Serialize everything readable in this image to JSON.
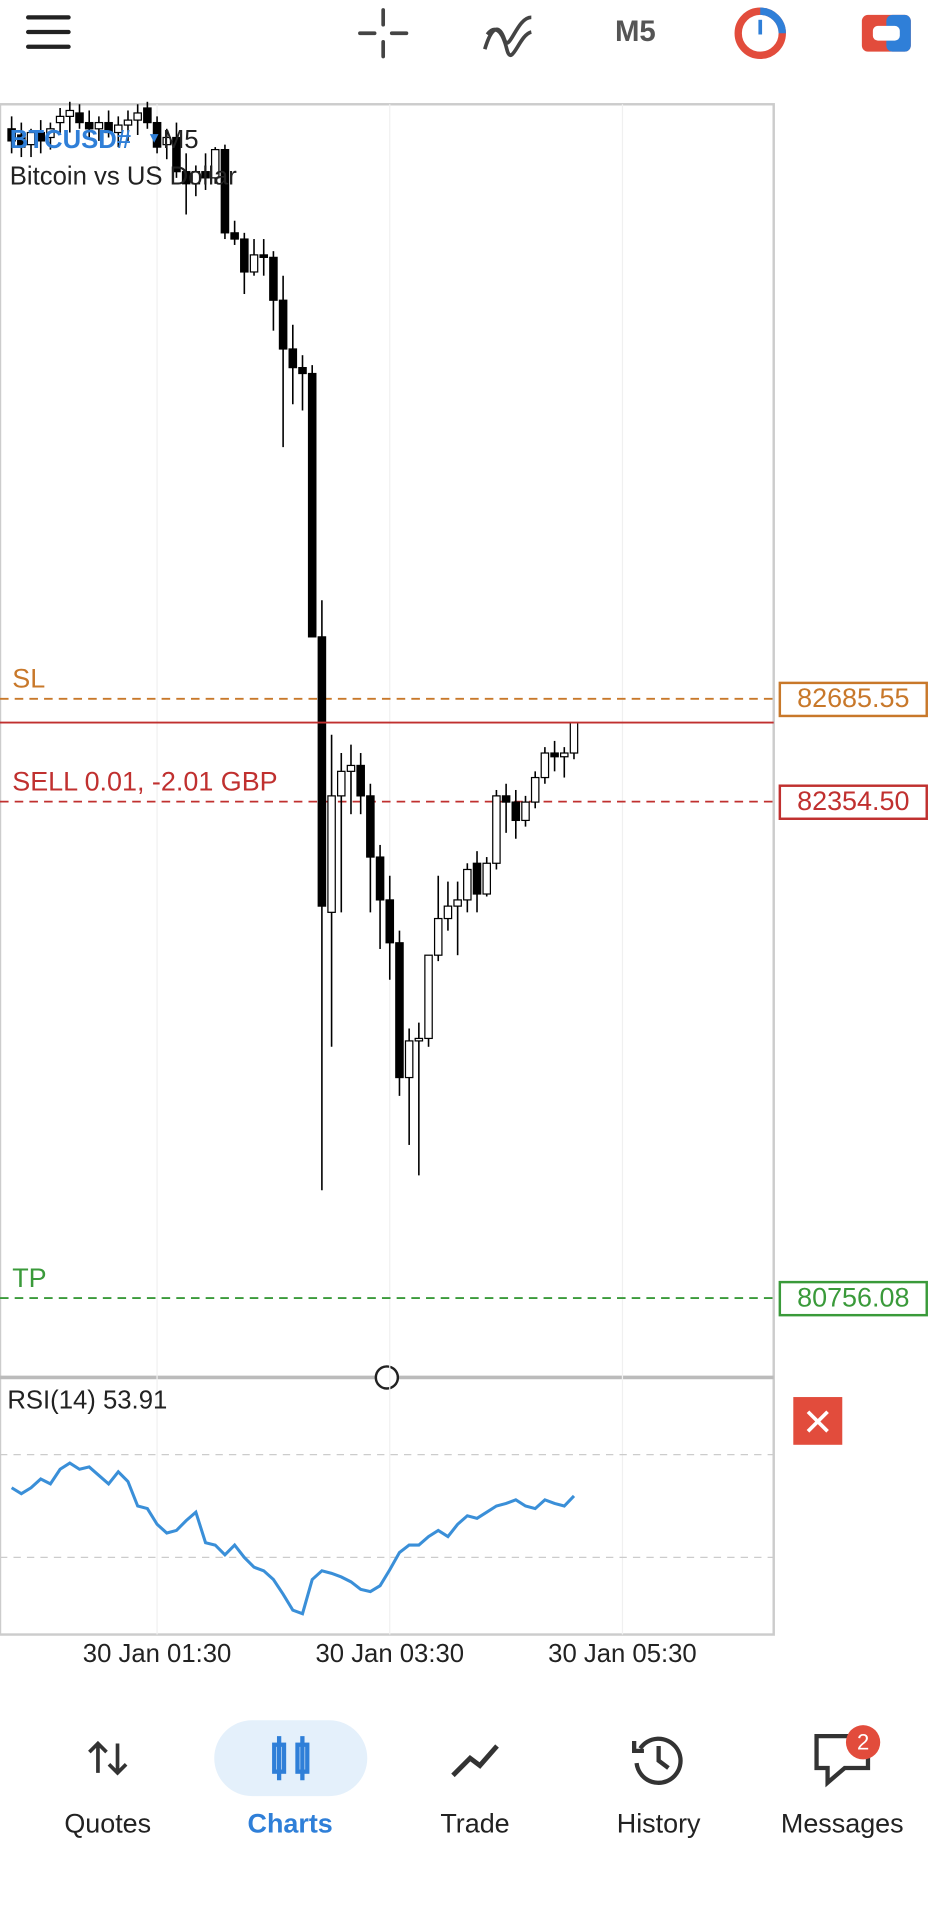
{
  "toolbar": {
    "timeframe": "M5"
  },
  "chart_data": {
    "type": "candlestick",
    "symbol": "BTCUSD#",
    "timeframe": "M5",
    "description": "Bitcoin vs US Dollar",
    "up_color": "#ffffff",
    "down_color": "#000000",
    "xlim": [
      -1.2,
      78.6
    ],
    "xticks": [
      {
        "value": 15,
        "label": "30 Jan 01:30"
      },
      {
        "value": 39,
        "label": "30 Jan 03:30"
      },
      {
        "value": 63,
        "label": "30 Jan 05:30"
      }
    ],
    "ylim": [
      80520,
      84600
    ],
    "open": [
      84521,
      84501,
      84470,
      84509,
      84493,
      84541,
      84561,
      84572,
      84541,
      84521,
      84541,
      84509,
      84533,
      84549,
      84588,
      84541,
      84470,
      84493,
      84383,
      84344,
      84383,
      84363,
      84454,
      84186,
      84166,
      84060,
      84115,
      84107,
      83969,
      83812,
      83752,
      83733,
      82885,
      81998,
      82373,
      82452,
      82471,
      82373,
      82176,
      82038,
      81900,
      81466,
      81584,
      81592,
      81860,
      81978,
      82018,
      82038,
      82156,
      82057,
      82156,
      82373,
      82353,
      82294,
      82353,
      82432,
      82511,
      82499,
      82511
    ],
    "high": [
      84561,
      84541,
      84521,
      84549,
      84541,
      84588,
      84608,
      84600,
      84580,
      84561,
      84580,
      84561,
      84580,
      84600,
      84608,
      84561,
      84521,
      84541,
      84442,
      84403,
      84442,
      84462,
      84470,
      84225,
      84186,
      84166,
      84166,
      84127,
      84048,
      83890,
      83792,
      83760,
      83003,
      82570,
      82511,
      82538,
      82511,
      82412,
      82215,
      82116,
      81939,
      81624,
      81643,
      81860,
      82116,
      82097,
      82097,
      82156,
      82195,
      82176,
      82392,
      82412,
      82392,
      82373,
      82452,
      82530,
      82550,
      82530,
      82609
    ],
    "low": [
      84442,
      84430,
      84430,
      84442,
      84454,
      84501,
      84509,
      84521,
      84493,
      84482,
      84493,
      84462,
      84482,
      84501,
      84521,
      84442,
      84423,
      84363,
      84245,
      84304,
      84324,
      84344,
      84166,
      84147,
      83989,
      84048,
      84048,
      83871,
      83496,
      83634,
      83614,
      82885,
      81103,
      81565,
      81998,
      82314,
      82314,
      81998,
      81880,
      81781,
      81407,
      81249,
      81151,
      81565,
      81841,
      81939,
      81860,
      81998,
      81998,
      82049,
      82136,
      82254,
      82235,
      82274,
      82333,
      82412,
      82452,
      82432,
      82491
    ],
    "close": [
      84482,
      84462,
      84509,
      84482,
      84521,
      84561,
      84580,
      84541,
      84521,
      84541,
      84509,
      84533,
      84549,
      84572,
      84541,
      84462,
      84493,
      84383,
      84344,
      84383,
      84363,
      84454,
      84186,
      84166,
      84060,
      84115,
      84107,
      83969,
      83812,
      83752,
      83733,
      82885,
      82018,
      82373,
      82452,
      82471,
      82373,
      82176,
      82038,
      81900,
      81466,
      81584,
      81592,
      81860,
      81978,
      82018,
      82038,
      82136,
      82057,
      82156,
      82373,
      82353,
      82294,
      82353,
      82432,
      82511,
      82499,
      82511,
      82609
    ],
    "orders": [
      {
        "label": "SL",
        "price": 82685.55,
        "price_label": "82685.55",
        "color": "#c8782a"
      },
      {
        "label": "SELL 0.01,  -2.01 GBP",
        "price": 82354.5,
        "price_label": "82354.50",
        "color": "#c0302f"
      },
      {
        "label": "TP",
        "price": 80756.08,
        "price_label": "80756.08",
        "color": "#3a9a3a"
      }
    ],
    "rsi": {
      "label": "RSI(14) 53.91",
      "color": "#3a8fd8",
      "ylim": [
        0,
        100
      ],
      "levels": [
        30,
        70
      ],
      "values": [
        57.1,
        54.8,
        57.1,
        60.5,
        58.6,
        64.3,
        66.7,
        64.3,
        65.2,
        61.9,
        58.6,
        63.3,
        59.5,
        50.0,
        49.0,
        42.9,
        39.5,
        40.5,
        44.3,
        47.6,
        35.7,
        34.8,
        31.0,
        34.8,
        30.0,
        26.2,
        24.8,
        21.4,
        15.7,
        9.5,
        8.1,
        21.4,
        24.8,
        23.8,
        22.4,
        20.5,
        17.6,
        16.7,
        19.0,
        25.2,
        31.9,
        34.8,
        34.8,
        38.1,
        40.5,
        38.1,
        42.9,
        46.2,
        45.2,
        47.6,
        50.0,
        51.0,
        52.4,
        50.0,
        49.0,
        52.4,
        51.0,
        50.0,
        53.91
      ]
    }
  },
  "nav": {
    "active": 1,
    "items": [
      "Quotes",
      "Charts",
      "Trade",
      "History",
      "Messages"
    ],
    "badge": 2
  }
}
